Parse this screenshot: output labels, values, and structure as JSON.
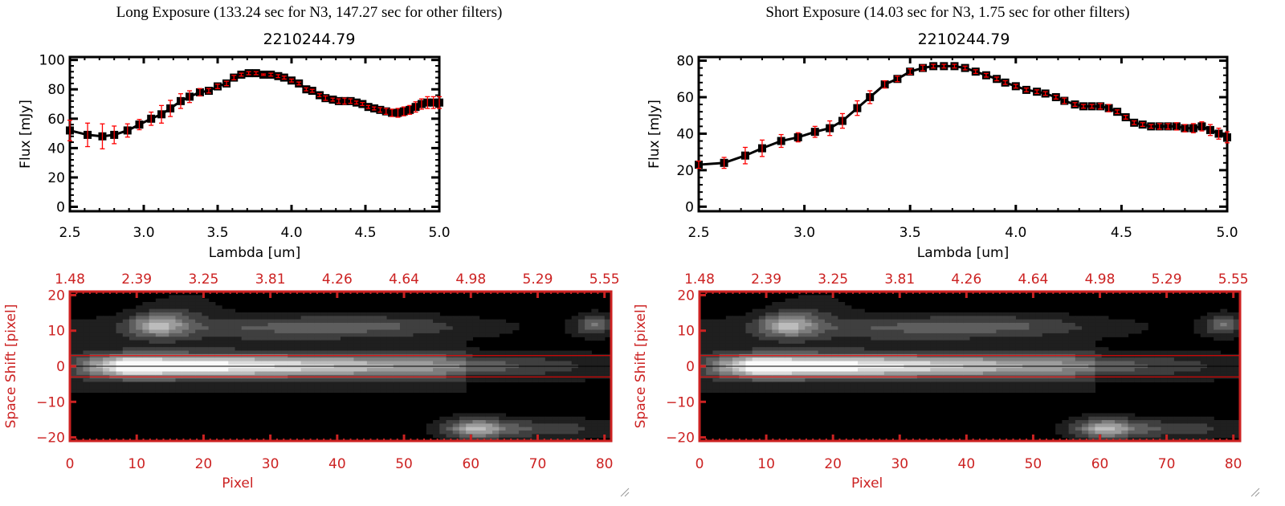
{
  "panels": [
    {
      "title": "Long Exposure (133.24 sec for N3, 147.27 sec for other filters)",
      "subtitle": "2210244.79"
    },
    {
      "title": "Short Exposure (14.03 sec for N3, 1.75 sec for other filters)",
      "subtitle": "2210244.79"
    }
  ],
  "chart_data": [
    {
      "type": "line",
      "title": "2210244.79",
      "xlabel": "Lambda [um]",
      "ylabel": "Flux [mJy]",
      "xlim": [
        2.5,
        5.0
      ],
      "ylim": [
        -3,
        102
      ],
      "xticks": [
        "2.5",
        "3.0",
        "3.5",
        "4.0",
        "4.5",
        "5.0"
      ],
      "yticks": [
        "0",
        "20",
        "40",
        "60",
        "80",
        "100"
      ],
      "grid": false,
      "colors": {
        "line": "#000000",
        "marker": "#000000",
        "errorbar": "#ff0000"
      },
      "x": [
        2.5,
        2.62,
        2.72,
        2.8,
        2.89,
        2.97,
        3.05,
        3.12,
        3.18,
        3.25,
        3.31,
        3.38,
        3.44,
        3.5,
        3.56,
        3.61,
        3.66,
        3.71,
        3.76,
        3.81,
        3.86,
        3.91,
        3.95,
        4.0,
        4.05,
        4.1,
        4.14,
        4.19,
        4.23,
        4.28,
        4.32,
        4.36,
        4.4,
        4.44,
        4.48,
        4.52,
        4.56,
        4.6,
        4.64,
        4.68,
        4.72,
        4.76,
        4.8,
        4.84,
        4.88,
        4.92,
        4.96,
        5.0
      ],
      "y": [
        52,
        49,
        48,
        49,
        52,
        56,
        60,
        63,
        67,
        72,
        75,
        78,
        79,
        82,
        84,
        88,
        90,
        91,
        91,
        90,
        90,
        89,
        88,
        86,
        84,
        80,
        79,
        76,
        74,
        73,
        72,
        72,
        72,
        71,
        70,
        68,
        67,
        66,
        65,
        64,
        64,
        65,
        66,
        68,
        70,
        71,
        71,
        71
      ],
      "yerr": [
        7,
        8,
        8.5,
        6,
        4.5,
        3.5,
        4.5,
        6,
        5.5,
        5,
        4,
        2.5,
        1.5,
        1.5,
        1.5,
        1.5,
        1,
        1,
        1,
        0.5,
        1,
        1,
        1,
        1,
        1,
        1,
        1,
        1,
        1.5,
        1,
        1.5,
        2,
        1.5,
        1,
        1,
        1,
        1,
        1.5,
        2,
        2.5,
        3,
        3,
        3,
        3.5,
        3.5,
        4,
        4,
        4
      ]
    },
    {
      "type": "line",
      "title": "2210244.79",
      "xlabel": "Lambda [um]",
      "ylabel": "Flux [mJy]",
      "xlim": [
        2.5,
        5.0
      ],
      "ylim": [
        -2.5,
        82
      ],
      "xticks": [
        "2.5",
        "3.0",
        "3.5",
        "4.0",
        "4.5",
        "5.0"
      ],
      "yticks": [
        "0",
        "20",
        "40",
        "60",
        "80"
      ],
      "grid": false,
      "colors": {
        "line": "#000000",
        "marker": "#000000",
        "errorbar": "#ff0000"
      },
      "x": [
        2.5,
        2.62,
        2.72,
        2.8,
        2.89,
        2.97,
        3.05,
        3.12,
        3.18,
        3.25,
        3.31,
        3.38,
        3.44,
        3.5,
        3.56,
        3.61,
        3.66,
        3.71,
        3.76,
        3.81,
        3.86,
        3.91,
        3.95,
        4.0,
        4.05,
        4.1,
        4.14,
        4.19,
        4.23,
        4.28,
        4.32,
        4.36,
        4.4,
        4.44,
        4.48,
        4.52,
        4.56,
        4.6,
        4.64,
        4.68,
        4.72,
        4.76,
        4.8,
        4.84,
        4.88,
        4.92,
        4.96,
        5.0
      ],
      "y": [
        23,
        24,
        28,
        32,
        36,
        38,
        41,
        43,
        47,
        54,
        60,
        67,
        70,
        74,
        76,
        77,
        77,
        77,
        76,
        74,
        72,
        70,
        68,
        66,
        64,
        63,
        62,
        60,
        58,
        56,
        55,
        55,
        55,
        54,
        52,
        49,
        46,
        45,
        44,
        44,
        44,
        44,
        43,
        43,
        44,
        42,
        40,
        38
      ],
      "yerr": [
        2,
        3,
        4.5,
        4.5,
        3.5,
        2.5,
        3,
        4,
        4,
        4,
        3.5,
        2,
        1.5,
        1.5,
        1.5,
        1,
        1,
        1,
        1,
        1,
        1,
        1,
        1,
        1,
        1,
        1,
        1,
        1,
        1.5,
        1,
        1,
        1,
        1.5,
        2,
        1,
        1,
        1,
        1,
        1,
        1.5,
        1.5,
        2,
        2,
        2.5,
        2.5,
        3,
        3,
        3
      ]
    },
    {
      "type": "heatmap",
      "xlabel": "Pixel",
      "ylabel": "Space Shift [pixel]",
      "xlim": [
        0,
        81
      ],
      "ylim": [
        -21,
        21
      ],
      "xticks": [
        "0",
        "10",
        "20",
        "30",
        "40",
        "50",
        "60",
        "70",
        "80"
      ],
      "yticks": [
        "20",
        "10",
        "0",
        "-10",
        "-20"
      ],
      "top_xticks": [
        "1.48",
        "2.39",
        "3.25",
        "3.81",
        "4.26",
        "4.64",
        "4.98",
        "5.29",
        "5.55"
      ],
      "hlines": [
        {
          "y": 3,
          "color": "#ff0000"
        },
        {
          "y": 0,
          "color": "#000000"
        },
        {
          "y": -3,
          "color": "#ff0000"
        }
      ],
      "colormap": "grayscale",
      "colors": {
        "axes": "#cc2222"
      }
    },
    {
      "type": "heatmap",
      "xlabel": "Pixel",
      "ylabel": "Space Shift [pixel]",
      "xlim": [
        0,
        81
      ],
      "ylim": [
        -21,
        21
      ],
      "xticks": [
        "0",
        "10",
        "20",
        "30",
        "40",
        "50",
        "60",
        "70",
        "80"
      ],
      "yticks": [
        "20",
        "10",
        "0",
        "-10",
        "-20"
      ],
      "top_xticks": [
        "1.48",
        "2.39",
        "3.25",
        "3.81",
        "4.26",
        "4.64",
        "4.98",
        "5.29",
        "5.55"
      ],
      "hlines": [
        {
          "y": 3,
          "color": "#ff0000"
        },
        {
          "y": 0,
          "color": "#000000"
        },
        {
          "y": -3,
          "color": "#ff0000"
        }
      ],
      "colormap": "grayscale",
      "colors": {
        "axes": "#cc2222"
      }
    }
  ]
}
